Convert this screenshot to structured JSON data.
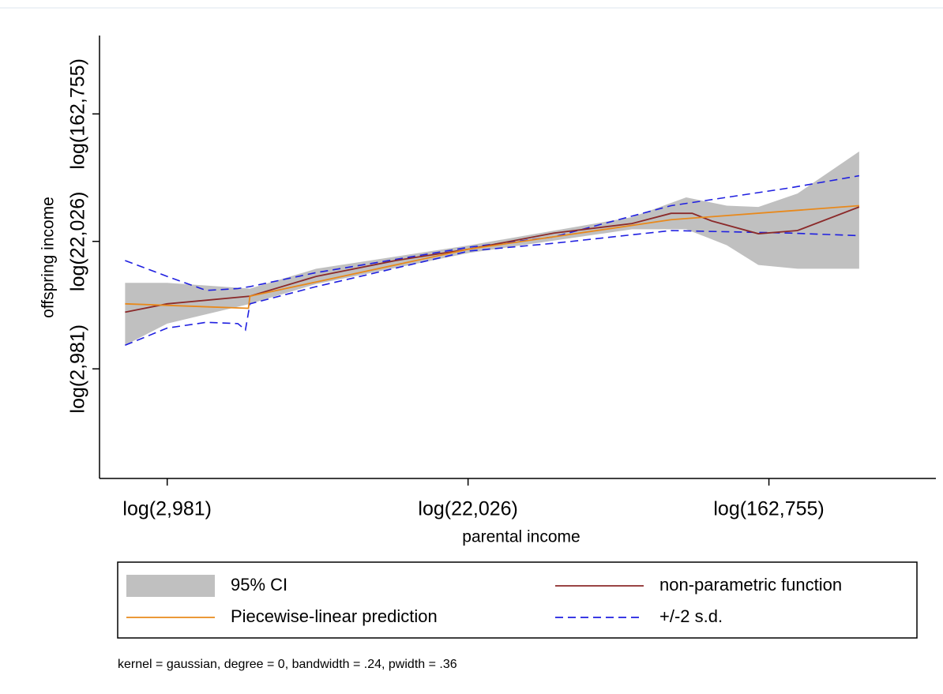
{
  "chart_data": {
    "type": "line",
    "xlabel": "parental income",
    "ylabel": "offspring income",
    "note": "kernel = gaussian, degree = 0, bandwidth = .24, pwidth = .36",
    "xlim": [
      7.55,
      13.11
    ],
    "ylim": [
      6.28,
      13.23
    ],
    "xticks": [
      {
        "value": 8,
        "label": "log(2,981)"
      },
      {
        "value": 10,
        "label": "log(22,026)"
      },
      {
        "value": 12,
        "label": "log(162,755)"
      }
    ],
    "yticks": [
      {
        "value": 8,
        "label": "log(2,981)"
      },
      {
        "value": 10,
        "label": "log(22,026)"
      },
      {
        "value": 12,
        "label": "log(162,755)"
      }
    ],
    "series": [
      {
        "name": "95% CI",
        "kind": "band",
        "color": "#c0c0c0",
        "x": [
          7.72,
          8,
          8.55,
          8.99,
          10.01,
          11.09,
          11.45,
          11.72,
          11.93,
          12.19,
          12.6
        ],
        "upper": [
          9.35,
          9.35,
          9.26,
          9.57,
          9.94,
          10.38,
          10.69,
          10.56,
          10.54,
          10.75,
          11.41
        ],
        "lower": [
          8.37,
          8.71,
          9.02,
          9.33,
          9.82,
          10.19,
          10.19,
          9.94,
          9.63,
          9.57,
          9.57
        ]
      },
      {
        "name": "non-parametric function",
        "kind": "line",
        "color": "#8b2a2a",
        "x": [
          7.72,
          8,
          8.55,
          8.99,
          9.52,
          10.01,
          10.57,
          11.09,
          11.35,
          11.49,
          11.62,
          11.93,
          12.19,
          12.6
        ],
        "values": [
          8.89,
          9.02,
          9.14,
          9.45,
          9.7,
          9.88,
          10.13,
          10.28,
          10.44,
          10.44,
          10.32,
          10.12,
          10.17,
          10.54
        ]
      },
      {
        "name": "Piecewise-linear prediction",
        "kind": "line",
        "color": "#e8891c",
        "x": [
          7.72,
          8.54,
          8.55,
          10.01,
          11.35,
          12.6
        ],
        "values": [
          9.02,
          8.95,
          9.14,
          9.88,
          10.34,
          10.56
        ]
      },
      {
        "name": "+/-2 s.d.",
        "kind": "dashed",
        "color": "#1f1fe0",
        "x": [
          7.72,
          8,
          8.26,
          8.47,
          8.52,
          8.55,
          8.99,
          10.01,
          10.57,
          11.35,
          12.14,
          12.6
        ],
        "upper": [
          9.7,
          9.45,
          9.23,
          9.26,
          9.28,
          9.29,
          9.51,
          9.91,
          10.07,
          10.56,
          10.84,
          11.03
        ],
        "lower": [
          8.37,
          8.64,
          8.73,
          8.71,
          8.61,
          9.02,
          9.29,
          9.85,
          9.97,
          10.17,
          10.13,
          10.09
        ]
      }
    ]
  }
}
